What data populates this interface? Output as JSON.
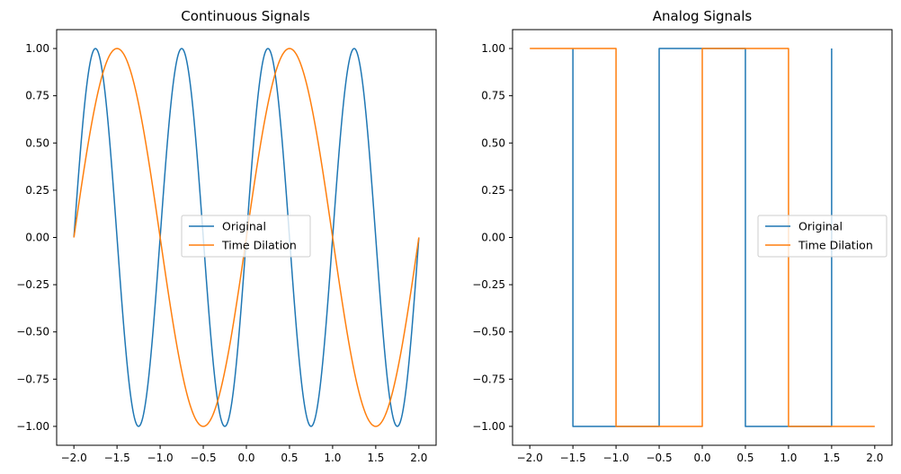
{
  "colors": {
    "original": "#1f77b4",
    "dilation": "#ff7f0e",
    "axes": "#000000",
    "background": "#ffffff",
    "legend_border": "#cccccc"
  },
  "chart_data": [
    {
      "type": "line",
      "title": "Continuous Signals",
      "xlim": [
        -2.2,
        2.2
      ],
      "ylim": [
        -1.1,
        1.1
      ],
      "xticks": [
        -2.0,
        -1.5,
        -1.0,
        -0.5,
        0.0,
        0.5,
        1.0,
        1.5,
        2.0
      ],
      "xtick_labels": [
        "−2.0",
        "−1.5",
        "−1.0",
        "−0.5",
        "0.0",
        "0.5",
        "1.0",
        "1.5",
        "2.0"
      ],
      "yticks": [
        1.0,
        0.75,
        0.5,
        0.25,
        0.0,
        -0.25,
        -0.5,
        -0.75,
        -1.0
      ],
      "ytick_labels": [
        "1.00",
        "0.75",
        "0.50",
        "0.25",
        "0.00",
        "−0.25",
        "−0.50",
        "−0.75",
        "−1.00"
      ],
      "grid": false,
      "legend_position": "center-right",
      "series": [
        {
          "name": "Original",
          "color_key": "original",
          "function": "sin",
          "frequency": 1.0,
          "x_range": [
            -2.0,
            2.0
          ]
        },
        {
          "name": "Time Dilation",
          "color_key": "dilation",
          "function": "sin",
          "frequency": 0.5,
          "x_range": [
            -2.0,
            2.0
          ]
        }
      ]
    },
    {
      "type": "line",
      "title": "Analog Signals",
      "xlim": [
        -2.2,
        2.2
      ],
      "ylim": [
        -1.1,
        1.1
      ],
      "xticks": [
        -2.0,
        -1.5,
        -1.0,
        -0.5,
        0.0,
        0.5,
        1.0,
        1.5,
        2.0
      ],
      "xtick_labels": [
        "−2.0",
        "−1.5",
        "−1.0",
        "−0.5",
        "0.0",
        "0.5",
        "1.0",
        "1.5",
        "2.0"
      ],
      "yticks": [
        1.0,
        0.75,
        0.5,
        0.25,
        0.0,
        -0.25,
        -0.5,
        -0.75,
        -1.0
      ],
      "ytick_labels": [
        "1.00",
        "0.75",
        "0.50",
        "0.25",
        "0.00",
        "−0.25",
        "−0.50",
        "−0.75",
        "−1.00"
      ],
      "grid": false,
      "legend_position": "center-right",
      "series": [
        {
          "name": "Original",
          "color_key": "original",
          "points": [
            [
              -1.5,
              1
            ],
            [
              -1.5,
              -1
            ],
            [
              -1.0,
              -1
            ],
            [
              -0.5,
              -1
            ],
            [
              -0.5,
              1
            ],
            [
              0.0,
              1
            ],
            [
              0.5,
              1
            ],
            [
              0.5,
              -1
            ],
            [
              1.0,
              -1
            ],
            [
              1.5,
              -1
            ],
            [
              1.5,
              1
            ]
          ]
        },
        {
          "name": "Time Dilation",
          "color_key": "dilation",
          "points": [
            [
              -2.0,
              1
            ],
            [
              -1.0,
              1
            ],
            [
              -1.0,
              -1
            ],
            [
              0.0,
              -1
            ],
            [
              0.0,
              1
            ],
            [
              1.0,
              1
            ],
            [
              1.0,
              -1
            ],
            [
              2.0,
              -1
            ]
          ]
        }
      ]
    }
  ]
}
